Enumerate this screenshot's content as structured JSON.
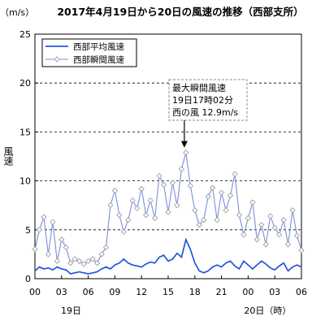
{
  "chart_data": {
    "type": "line",
    "title": "2017年4月19日から20日の風速の推移（西部支所）",
    "unit_label": "（m/s）",
    "ylabel": "風速",
    "ylim": [
      0,
      25
    ],
    "yticks": [
      0,
      5,
      10,
      15,
      20,
      25
    ],
    "xlim": [
      0,
      30
    ],
    "x_hour_labels": [
      "00",
      "03",
      "06",
      "09",
      "12",
      "15",
      "18",
      "21",
      "00",
      "03",
      "06"
    ],
    "x_day_labels": [
      {
        "hour": 0,
        "text": "19日"
      },
      {
        "hour": 24,
        "text": "20日（時）"
      }
    ],
    "grid": "horizontal-dashed",
    "legend_position": "top-left",
    "colors": {
      "avg": "#2255dd",
      "gust": "#7a8fdc",
      "marker": "#a7a7a7"
    },
    "annotation": {
      "lines": [
        "最大瞬間風速",
        "19日17時02分",
        "西の風 12.9m/s"
      ],
      "x": 17.0,
      "y": 12.9
    },
    "series": [
      {
        "name": "西部平均風速",
        "x": [
          0,
          0.5,
          1,
          1.5,
          2,
          2.5,
          3,
          3.5,
          4,
          4.5,
          5,
          5.5,
          6,
          6.5,
          7,
          7.5,
          8,
          8.5,
          9,
          9.5,
          10,
          10.5,
          11,
          11.5,
          12,
          12.5,
          13,
          13.5,
          14,
          14.5,
          15,
          15.5,
          16,
          16.5,
          17,
          17.5,
          18,
          18.5,
          19,
          19.5,
          20,
          20.5,
          21,
          21.5,
          22,
          22.5,
          23,
          23.5,
          24,
          24.5,
          25,
          25.5,
          26,
          26.5,
          27,
          27.5,
          28,
          28.5,
          29,
          29.5,
          30
        ],
        "values": [
          0.8,
          1.2,
          1.0,
          1.1,
          0.9,
          1.2,
          1.0,
          0.9,
          0.5,
          0.6,
          0.7,
          0.6,
          0.5,
          0.6,
          0.7,
          1.0,
          1.2,
          1.0,
          1.4,
          1.6,
          2.0,
          1.6,
          1.4,
          1.3,
          1.2,
          1.5,
          1.7,
          1.6,
          2.2,
          2.4,
          1.8,
          2.0,
          2.6,
          2.2,
          4.0,
          3.0,
          1.6,
          0.8,
          0.6,
          0.8,
          1.2,
          1.4,
          1.2,
          1.6,
          1.8,
          1.3,
          1.0,
          1.8,
          1.4,
          1.0,
          1.4,
          1.8,
          1.5,
          1.1,
          0.9,
          1.3,
          1.6,
          0.8,
          1.2,
          1.4,
          1.2
        ]
      },
      {
        "name": "西部瞬間風速",
        "x": [
          0,
          0.5,
          1,
          1.5,
          2,
          2.5,
          3,
          3.5,
          4,
          4.5,
          5,
          5.5,
          6,
          6.5,
          7,
          7.5,
          8,
          8.5,
          9,
          9.5,
          10,
          10.5,
          11,
          11.5,
          12,
          12.5,
          13,
          13.5,
          14,
          14.5,
          15,
          15.5,
          16,
          16.5,
          17,
          17.5,
          18,
          18.5,
          19,
          19.5,
          20,
          20.5,
          21,
          21.5,
          22,
          22.5,
          23,
          23.5,
          24,
          24.5,
          25,
          25.5,
          26,
          26.5,
          27,
          27.5,
          28,
          28.5,
          29,
          29.5,
          30
        ],
        "values": [
          3.0,
          5.0,
          6.3,
          2.5,
          5.8,
          1.8,
          4.0,
          3.2,
          1.6,
          2.0,
          1.8,
          1.5,
          1.8,
          2.0,
          1.6,
          2.5,
          3.2,
          7.5,
          9.0,
          6.5,
          4.8,
          6.0,
          8.0,
          7.2,
          9.2,
          6.5,
          8.0,
          6.2,
          10.5,
          9.6,
          6.8,
          9.8,
          7.5,
          11.2,
          12.9,
          9.5,
          7.0,
          5.5,
          6.0,
          8.4,
          9.3,
          6.0,
          8.8,
          7.0,
          8.5,
          10.7,
          6.5,
          4.5,
          6.2,
          7.8,
          4.0,
          5.5,
          3.5,
          6.4,
          5.2,
          4.5,
          6.0,
          3.5,
          7.0,
          4.4,
          2.9
        ]
      }
    ]
  }
}
